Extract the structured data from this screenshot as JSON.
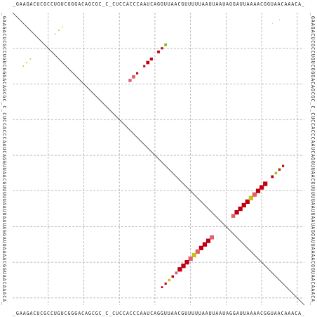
{
  "chart_data": {
    "type": "dotplot",
    "sequence": "_GAAGACUCGCCUGUCGGGACAGCGC_C_CUCCACCCAAUCAGGUUAACGUUUUUAAUUAAUAGGAUUAAAACGGUAACAAACA_",
    "xlim": [
      0,
      82
    ],
    "ylim": [
      0,
      82
    ],
    "xticks": [
      10,
      20,
      30,
      40,
      50,
      60,
      70,
      80
    ],
    "yticks": [
      10,
      20,
      30,
      40,
      50,
      60,
      70,
      80
    ],
    "grid": true,
    "points": [
      {
        "x": 62,
        "y": 57,
        "p": 0.6,
        "color": "#e06070"
      },
      {
        "x": 63,
        "y": 56,
        "p": 0.8,
        "color": "#c00010"
      },
      {
        "x": 64,
        "y": 55,
        "p": 0.8,
        "color": "#c00010"
      },
      {
        "x": 65,
        "y": 54,
        "p": 0.8,
        "color": "#c00010"
      },
      {
        "x": 66,
        "y": 53,
        "p": 0.8,
        "color": "#c00010"
      },
      {
        "x": 67,
        "y": 52,
        "p": 0.8,
        "color": "#c8c010"
      },
      {
        "x": 68,
        "y": 51,
        "p": 0.8,
        "color": "#e06070"
      },
      {
        "x": 69,
        "y": 50,
        "p": 0.8,
        "color": "#c00010"
      },
      {
        "x": 70,
        "y": 49,
        "p": 0.8,
        "color": "#c00010"
      },
      {
        "x": 71,
        "y": 48,
        "p": 0.8,
        "color": "#c00010"
      },
      {
        "x": 73,
        "y": 46,
        "p": 0.3,
        "color": "#c00010"
      },
      {
        "x": 74,
        "y": 45,
        "p": 0.25,
        "color": "#a0c020"
      },
      {
        "x": 75,
        "y": 44,
        "p": 0.25,
        "color": "#c03010"
      },
      {
        "x": 76,
        "y": 43,
        "p": 0.2,
        "color": "#c00010"
      },
      {
        "x": 56,
        "y": 63,
        "p": 0.7,
        "color": "#e06070"
      },
      {
        "x": 55,
        "y": 64,
        "p": 0.8,
        "color": "#c00010"
      },
      {
        "x": 54,
        "y": 65,
        "p": 0.8,
        "color": "#c00010"
      },
      {
        "x": 53,
        "y": 66,
        "p": 0.8,
        "color": "#c00010"
      },
      {
        "x": 52,
        "y": 67,
        "p": 0.8,
        "color": "#e06070"
      },
      {
        "x": 51,
        "y": 68,
        "p": 0.8,
        "color": "#c8c010"
      },
      {
        "x": 50,
        "y": 69,
        "p": 0.8,
        "color": "#e06070"
      },
      {
        "x": 49,
        "y": 70,
        "p": 0.8,
        "color": "#c00010"
      },
      {
        "x": 48,
        "y": 71,
        "p": 0.8,
        "color": "#c00010"
      },
      {
        "x": 47,
        "y": 72,
        "p": 0.8,
        "color": "#c00010"
      },
      {
        "x": 46,
        "y": 73,
        "p": 0.3,
        "color": "#e06070"
      },
      {
        "x": 45,
        "y": 74,
        "p": 0.25,
        "color": "#c00010"
      },
      {
        "x": 44,
        "y": 75,
        "p": 0.25,
        "color": "#c8c010"
      },
      {
        "x": 43,
        "y": 76,
        "p": 0.2,
        "color": "#c00010"
      },
      {
        "x": 42,
        "y": 77,
        "p": 0.15,
        "color": "#c00010"
      },
      {
        "x": 43,
        "y": 9,
        "p": 0.3,
        "color": "#80c020"
      },
      {
        "x": 42,
        "y": 10,
        "p": 0.2,
        "color": "#c00010"
      },
      {
        "x": 41,
        "y": 11,
        "p": 0.3,
        "color": "#c00010"
      },
      {
        "x": 39,
        "y": 13,
        "p": 0.35,
        "color": "#c00010"
      },
      {
        "x": 38,
        "y": 14,
        "p": 0.45,
        "color": "#c00010"
      },
      {
        "x": 37,
        "y": 15,
        "p": 0.2,
        "color": "#c00010"
      },
      {
        "x": 35,
        "y": 17,
        "p": 0.2,
        "color": "#c00010"
      },
      {
        "x": 34,
        "y": 18,
        "p": 0.45,
        "color": "#e06070"
      },
      {
        "x": 33,
        "y": 19,
        "p": 0.4,
        "color": "#e06070"
      },
      {
        "x": 3,
        "y": 15,
        "p": 0.05,
        "color": "#c8c010"
      },
      {
        "x": 4,
        "y": 14,
        "p": 0.05,
        "color": "#80c020"
      },
      {
        "x": 5,
        "y": 13,
        "p": 0.05,
        "color": "#c8c010"
      },
      {
        "x": 12,
        "y": 6,
        "p": 0.04,
        "color": "#80c020"
      },
      {
        "x": 13,
        "y": 5,
        "p": 0.04,
        "color": "#80c020"
      },
      {
        "x": 14,
        "y": 4,
        "p": 0.04,
        "color": "#c8c010"
      },
      {
        "x": 73,
        "y": 3,
        "p": 0.02,
        "color": "#c8c010"
      },
      {
        "x": 75,
        "y": 2,
        "p": 0.02,
        "color": "#80c020"
      }
    ]
  }
}
